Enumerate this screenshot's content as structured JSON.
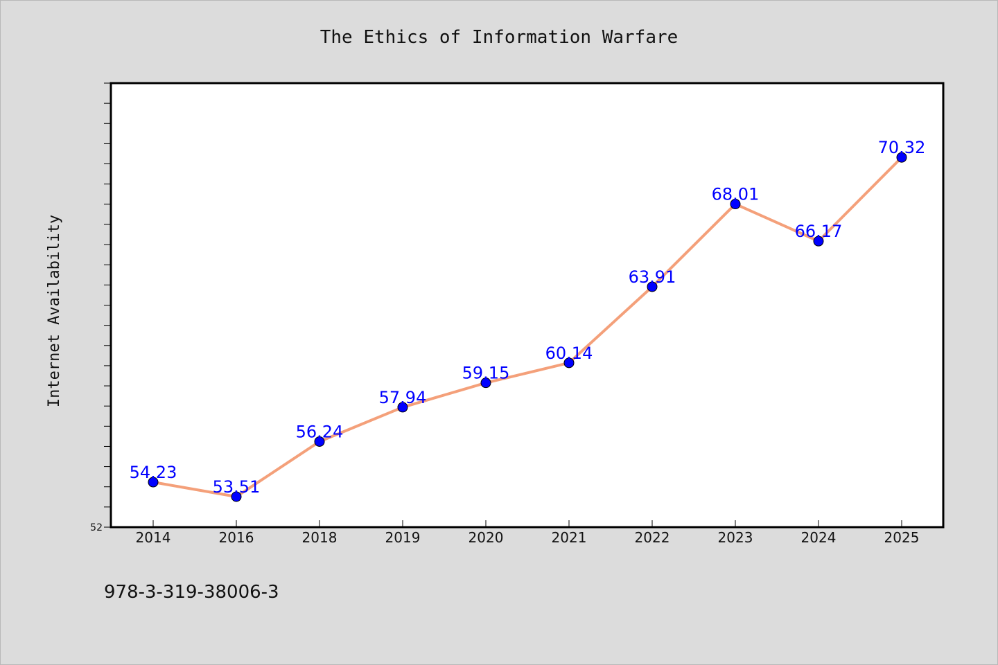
{
  "chart_data": {
    "type": "line",
    "title": "The Ethics of Information Warfare",
    "ylabel": "Internet Availability",
    "xlabel": "",
    "categories": [
      "2014",
      "2016",
      "2018",
      "2019",
      "2020",
      "2021",
      "2022",
      "2023",
      "2024",
      "2025"
    ],
    "series": [
      {
        "values": [
          54.23,
          53.51,
          56.24,
          57.94,
          59.15,
          60.14,
          63.91,
          68.01,
          66.17,
          70.32
        ],
        "data_labels": [
          "54.23",
          "53.51",
          "56.24",
          "57.94",
          "59.15",
          "60.14",
          "63.91",
          "68.01",
          "66.17",
          "70.32"
        ],
        "line_color": "#f4a07a",
        "marker_color": "#0000ff"
      }
    ],
    "ylim": [
      52,
      74
    ],
    "yticks_labeled": [
      "52"
    ],
    "ytick_step": 1,
    "grid": false,
    "legend": "none"
  },
  "footer": {
    "isbn": "978-3-319-38006-3"
  },
  "colors": {
    "background": "#dcdcdc",
    "plot_background": "#ffffff",
    "line": "#f4a07a",
    "marker": "#0000ff",
    "data_label": "#0000ff"
  }
}
